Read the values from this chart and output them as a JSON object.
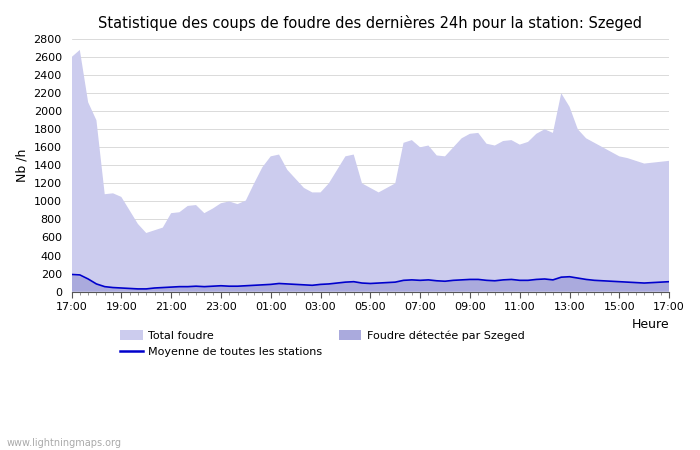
{
  "title": "Statistique des coups de foudre des dernières 24h pour la station: Szeged",
  "xlabel": "Heure",
  "ylabel": "Nb /h",
  "ylim": [
    0,
    2800
  ],
  "yticks": [
    0,
    200,
    400,
    600,
    800,
    1000,
    1200,
    1400,
    1600,
    1800,
    2000,
    2200,
    2400,
    2600,
    2800
  ],
  "xtick_labels": [
    "17:00",
    "19:00",
    "21:00",
    "23:00",
    "01:00",
    "03:00",
    "05:00",
    "07:00",
    "09:00",
    "11:00",
    "13:00",
    "15:00",
    "17:00"
  ],
  "watermark": "www.lightningmaps.org",
  "color_total": "#ccccee",
  "color_szeged": "#aaaadd",
  "color_moyenne": "#0000cc",
  "total_foudre": [
    2600,
    2680,
    2100,
    1900,
    1080,
    1090,
    1050,
    900,
    750,
    650,
    680,
    710,
    870,
    880,
    950,
    960,
    870,
    920,
    980,
    1000,
    970,
    1010,
    1200,
    1380,
    1500,
    1520,
    1350,
    1250,
    1150,
    1100,
    1100,
    1200,
    1350,
    1500,
    1520,
    1200,
    1150,
    1100,
    1150,
    1200,
    1650,
    1680,
    1600,
    1620,
    1510,
    1500,
    1600,
    1700,
    1750,
    1760,
    1640,
    1620,
    1670,
    1680,
    1630,
    1660,
    1750,
    1800,
    1760,
    2200,
    2050,
    1800,
    1700,
    1650,
    1600,
    1550,
    1500,
    1480,
    1450,
    1420,
    1430,
    1440,
    1450
  ],
  "szeged_foudre": [
    180,
    170,
    130,
    80,
    50,
    40,
    35,
    30,
    30,
    30,
    40,
    45,
    50,
    55,
    55,
    60,
    55,
    60,
    65,
    60,
    60,
    65,
    70,
    70,
    80,
    85,
    80,
    75,
    70,
    70,
    75,
    80,
    90,
    100,
    105,
    90,
    85,
    90,
    95,
    100,
    120,
    125,
    120,
    125,
    115,
    110,
    120,
    125,
    130,
    130,
    120,
    115,
    125,
    130,
    120,
    120,
    130,
    135,
    125,
    155,
    160,
    145,
    130,
    120,
    115,
    110,
    105,
    100,
    95,
    90,
    95,
    100,
    105
  ],
  "moyenne_stations": [
    190,
    185,
    140,
    85,
    55,
    45,
    40,
    35,
    30,
    30,
    40,
    45,
    50,
    55,
    55,
    60,
    55,
    60,
    65,
    60,
    60,
    65,
    70,
    75,
    80,
    90,
    85,
    80,
    75,
    70,
    80,
    85,
    95,
    105,
    110,
    95,
    90,
    95,
    100,
    105,
    125,
    130,
    125,
    130,
    120,
    115,
    125,
    130,
    135,
    135,
    125,
    120,
    130,
    135,
    125,
    125,
    135,
    140,
    130,
    160,
    165,
    150,
    135,
    125,
    120,
    115,
    110,
    105,
    100,
    95,
    100,
    105,
    110
  ]
}
